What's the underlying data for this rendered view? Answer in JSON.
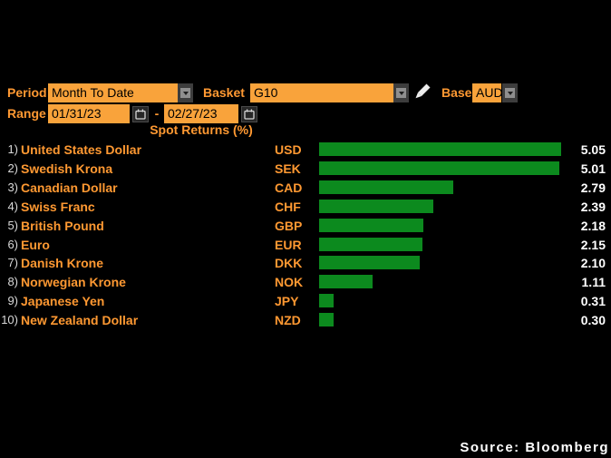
{
  "colors": {
    "background": "#000000",
    "accent_orange": "#ff9932",
    "field_orange": "#f9a33b",
    "bar_green": "#0c8a1e",
    "value_white": "#ffffff",
    "rank_gray": "#d9d9d9"
  },
  "controls": {
    "period_label": "Period",
    "period_value": "Month To Date",
    "basket_label": "Basket",
    "basket_value": "G10",
    "base_label": "Base",
    "base_value": "AUD",
    "range_label": "Range",
    "range_start": "01/31/23",
    "range_separator": "-",
    "range_end": "02/27/23"
  },
  "icons": {
    "dropdown_arrow": "chevron-down-icon",
    "calendar": "calendar-icon",
    "pencil": "pencil-edit-icon"
  },
  "chart_data": {
    "type": "bar",
    "orientation": "horizontal",
    "title": "Spot Returns (%)",
    "xlim": [
      0,
      5.05
    ],
    "grid": false,
    "legend": "none",
    "bar_color": "#0c8a1e",
    "rows": [
      {
        "rank": "1)",
        "name": "United States Dollar",
        "code": "USD",
        "value": 5.05
      },
      {
        "rank": "2)",
        "name": "Swedish Krona",
        "code": "SEK",
        "value": 5.01
      },
      {
        "rank": "3)",
        "name": "Canadian Dollar",
        "code": "CAD",
        "value": 2.79
      },
      {
        "rank": "4)",
        "name": "Swiss Franc",
        "code": "CHF",
        "value": 2.39
      },
      {
        "rank": "5)",
        "name": "British Pound",
        "code": "GBP",
        "value": 2.18
      },
      {
        "rank": "6)",
        "name": "Euro",
        "code": "EUR",
        "value": 2.15
      },
      {
        "rank": "7)",
        "name": "Danish Krone",
        "code": "DKK",
        "value": 2.1
      },
      {
        "rank": "8)",
        "name": "Norwegian Krone",
        "code": "NOK",
        "value": 1.11
      },
      {
        "rank": "9)",
        "name": "Japanese Yen",
        "code": "JPY",
        "value": 0.31
      },
      {
        "rank": "10)",
        "name": "New Zealand Dollar",
        "code": "NZD",
        "value": 0.3
      }
    ]
  },
  "source_label": "Source: Bloomberg"
}
